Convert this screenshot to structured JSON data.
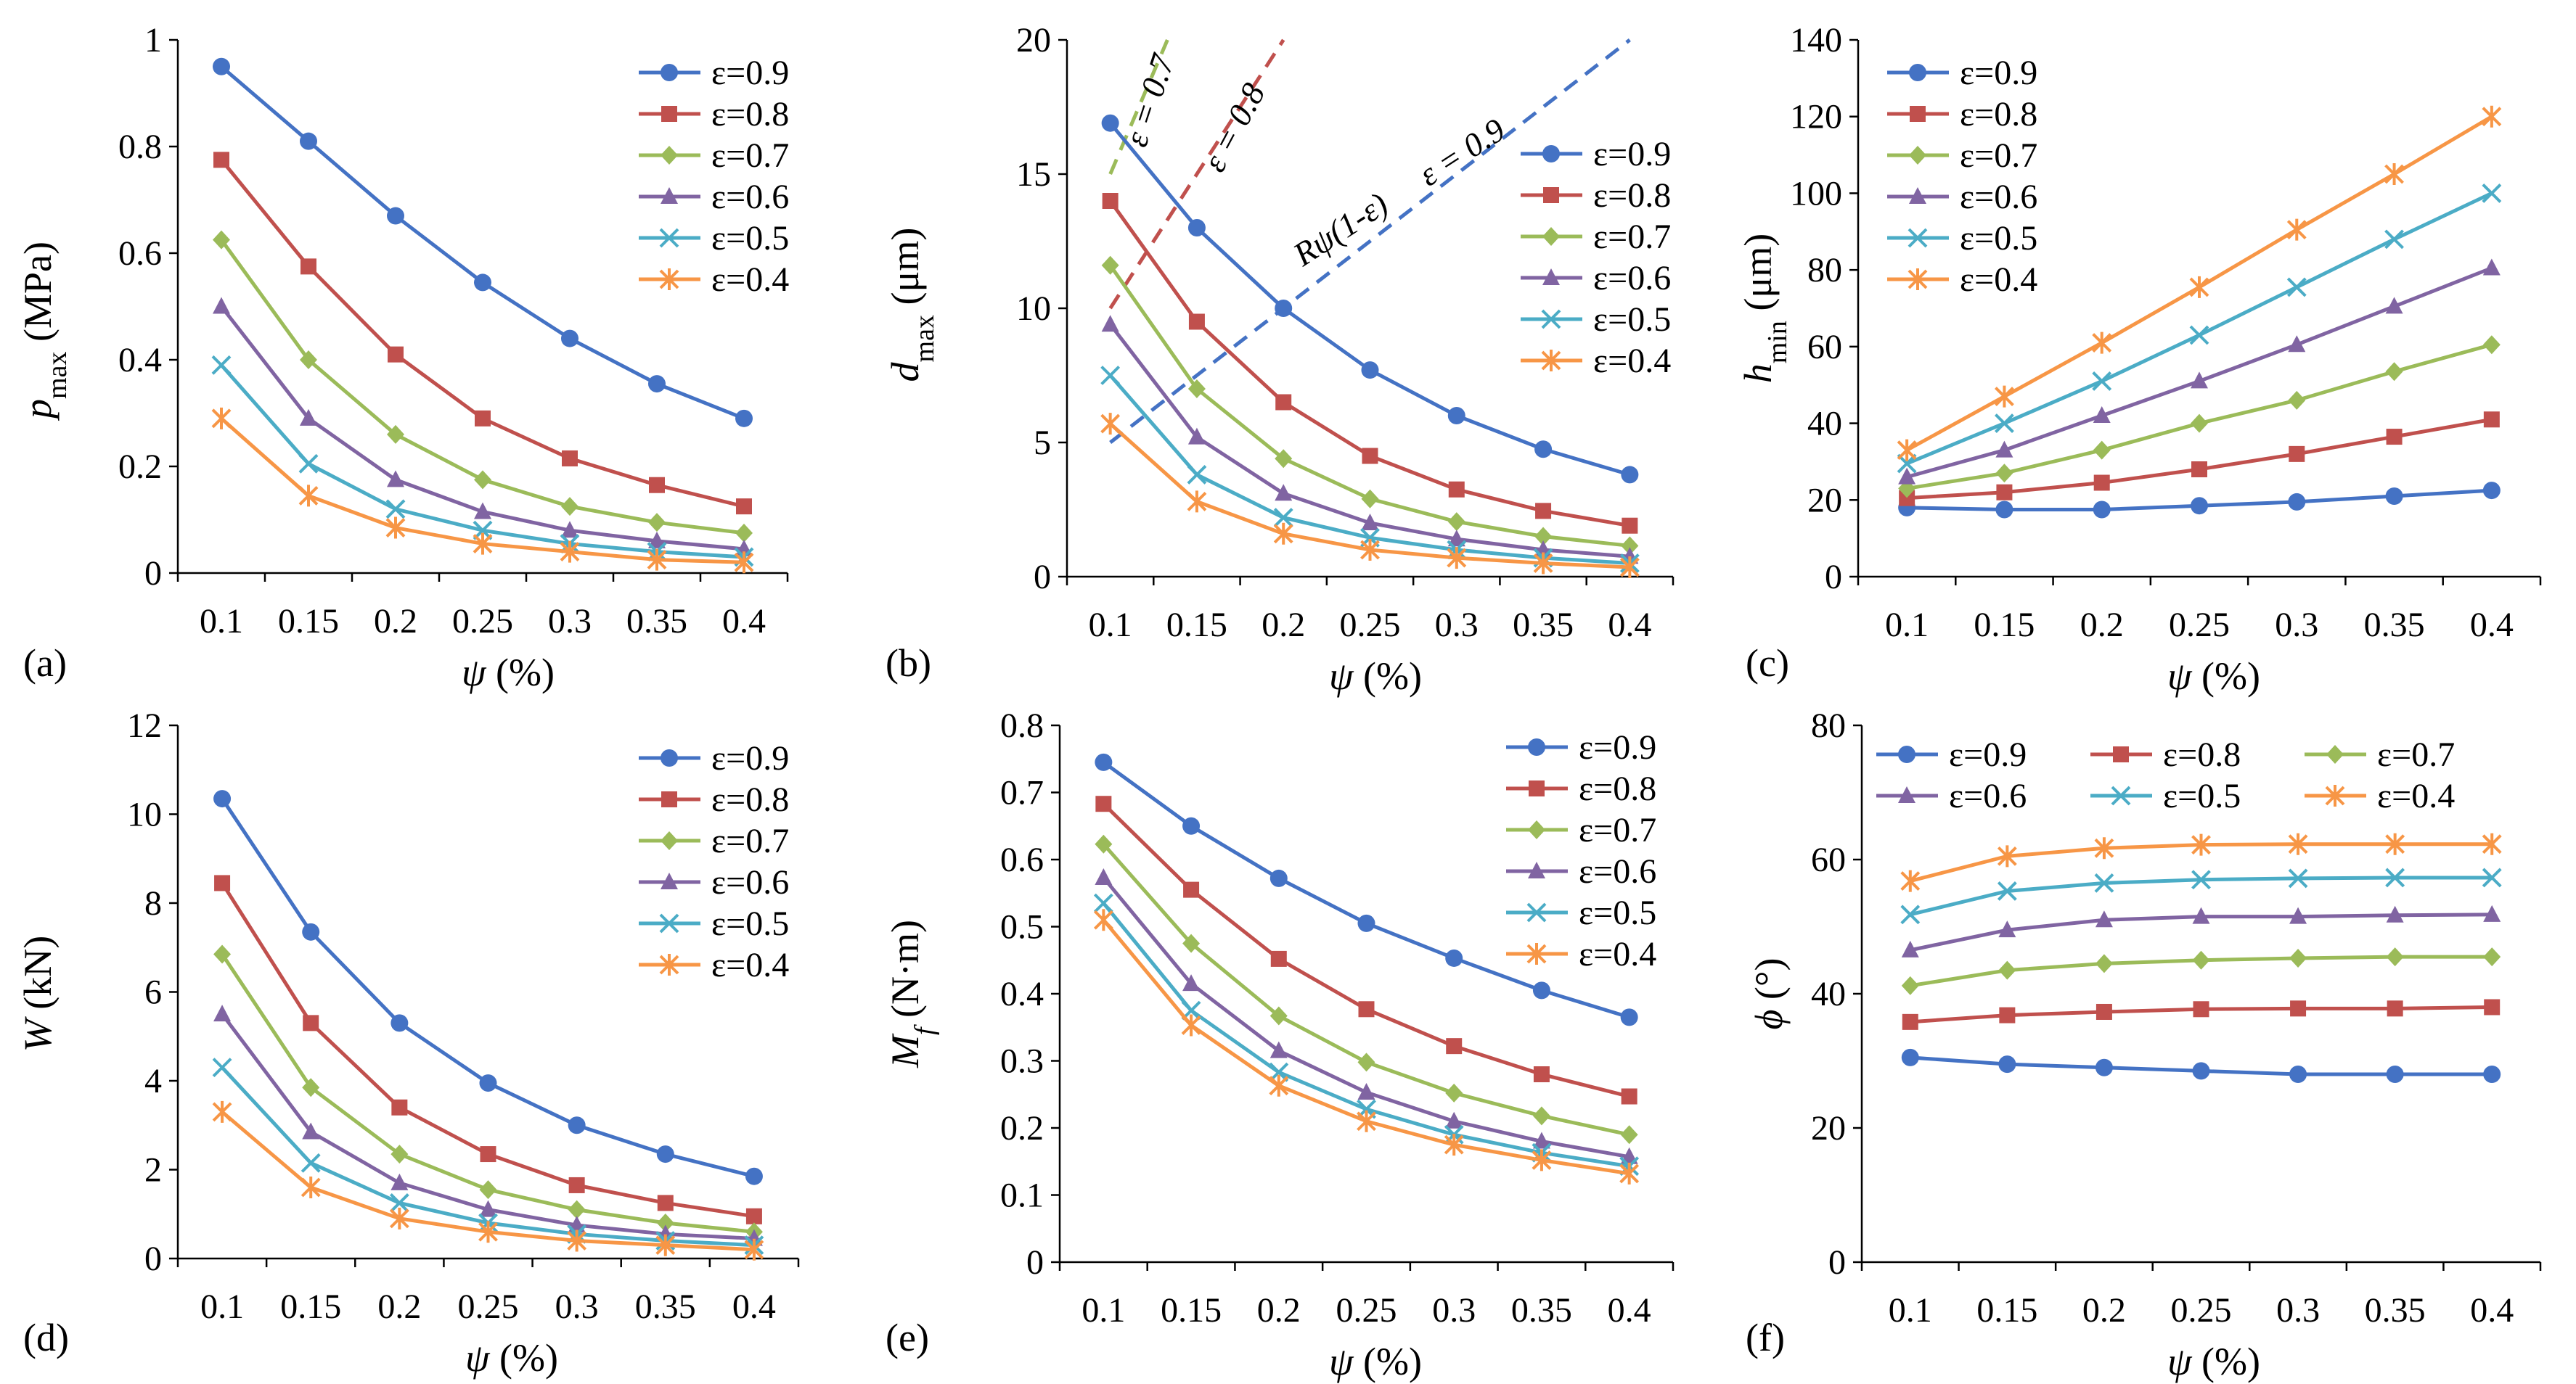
{
  "figure": {
    "series_names": [
      "ε=0.9",
      "ε=0.8",
      "ε=0.7",
      "ε=0.6",
      "ε=0.5",
      "ε=0.4"
    ],
    "colors": [
      "#4472C4",
      "#C0504D",
      "#9BBB59",
      "#8064A2",
      "#4BACC6",
      "#F79646"
    ],
    "markers": [
      "circle",
      "square",
      "diamond",
      "triangle",
      "x",
      "star"
    ]
  },
  "chart_data": [
    {
      "id": "a",
      "type": "line",
      "panel_label": "(a)",
      "x": [
        0.1,
        0.15,
        0.2,
        0.25,
        0.3,
        0.35,
        0.4
      ],
      "x_tick_labels": [
        "0.1",
        "0.15",
        "0.2",
        "0.25",
        "0.3",
        "0.35",
        "0.4"
      ],
      "xlabel_sym": "ψ",
      "xlabel_sub": "",
      "xlabel_unit": " (%)",
      "ylabel_sym": "p",
      "ylabel_sub": "max",
      "ylabel_unit": " (MPa)",
      "ylim": [
        0,
        1
      ],
      "y_ticks": [
        0,
        0.2,
        0.4,
        0.6,
        0.8,
        1
      ],
      "y_tick_labels": [
        "0",
        "0.2",
        "0.4",
        "0.6",
        "0.8",
        "1"
      ],
      "legend_position": "top-right",
      "legend_layout": "column",
      "series": [
        {
          "name": "ε=0.9",
          "values": [
            0.95,
            0.81,
            0.67,
            0.545,
            0.44,
            0.355,
            0.29
          ]
        },
        {
          "name": "ε=0.8",
          "values": [
            0.775,
            0.575,
            0.41,
            0.29,
            0.215,
            0.165,
            0.125
          ]
        },
        {
          "name": "ε=0.7",
          "values": [
            0.625,
            0.4,
            0.26,
            0.175,
            0.125,
            0.095,
            0.075
          ]
        },
        {
          "name": "ε=0.6",
          "values": [
            0.5,
            0.29,
            0.175,
            0.115,
            0.08,
            0.06,
            0.045
          ]
        },
        {
          "name": "ε=0.5",
          "values": [
            0.39,
            0.205,
            0.12,
            0.08,
            0.055,
            0.04,
            0.03
          ]
        },
        {
          "name": "ε=0.4",
          "values": [
            0.29,
            0.145,
            0.085,
            0.055,
            0.04,
            0.025,
            0.02
          ]
        }
      ]
    },
    {
      "id": "b",
      "type": "line",
      "panel_label": "(b)",
      "x": [
        0.1,
        0.15,
        0.2,
        0.25,
        0.3,
        0.35,
        0.4
      ],
      "x_tick_labels": [
        "0.1",
        "0.15",
        "0.2",
        "0.25",
        "0.3",
        "0.35",
        "0.4"
      ],
      "xlabel_sym": "ψ",
      "xlabel_sub": "",
      "xlabel_unit": " (%)",
      "ylabel_sym": "d",
      "ylabel_sub": "max",
      "ylabel_unit": " (μm)",
      "ylim": [
        0,
        20
      ],
      "y_ticks": [
        0,
        5,
        10,
        15,
        20
      ],
      "y_tick_labels": [
        "0",
        "5",
        "10",
        "15",
        "20"
      ],
      "legend_position": "right",
      "legend_layout": "column",
      "series": [
        {
          "name": "ε=0.9",
          "values": [
            16.9,
            13.0,
            10.0,
            7.7,
            6.0,
            4.75,
            3.8
          ]
        },
        {
          "name": "ε=0.8",
          "values": [
            14.0,
            9.5,
            6.5,
            4.5,
            3.25,
            2.45,
            1.9
          ]
        },
        {
          "name": "ε=0.7",
          "values": [
            11.6,
            7.0,
            4.4,
            2.9,
            2.05,
            1.5,
            1.15
          ]
        },
        {
          "name": "ε=0.6",
          "values": [
            9.4,
            5.2,
            3.1,
            2.0,
            1.4,
            1.0,
            0.75
          ]
        },
        {
          "name": "ε=0.5",
          "values": [
            7.5,
            3.8,
            2.2,
            1.45,
            1.0,
            0.7,
            0.5
          ]
        },
        {
          "name": "ε=0.4",
          "values": [
            5.7,
            2.8,
            1.6,
            1.0,
            0.7,
            0.5,
            0.35
          ]
        }
      ],
      "reference_lines": [
        {
          "label": "ε = 0.7",
          "color": "#9BBB59",
          "x": [
            0.1,
            0.133
          ],
          "y": [
            15.0,
            20.0
          ]
        },
        {
          "label": "ε = 0.8",
          "color": "#C0504D",
          "x": [
            0.1,
            0.2
          ],
          "y": [
            10.0,
            20.0
          ]
        },
        {
          "label": "ε = 0.9",
          "color": "#4472C4",
          "x": [
            0.1,
            0.4
          ],
          "y": [
            5.0,
            20.0
          ]
        }
      ],
      "annotations": {
        "rpsi": "Rψ(1-ε)",
        "e07": "ε = 0.7",
        "e08": "ε = 0.8",
        "e09": "ε = 0.9"
      }
    },
    {
      "id": "c",
      "type": "line",
      "panel_label": "(c)",
      "x": [
        0.1,
        0.15,
        0.2,
        0.25,
        0.3,
        0.35,
        0.4
      ],
      "x_tick_labels": [
        "0.1",
        "0.15",
        "0.2",
        "0.25",
        "0.3",
        "0.35",
        "0.4"
      ],
      "xlabel_sym": "ψ",
      "xlabel_sub": "",
      "xlabel_unit": " (%)",
      "ylabel_sym": "h",
      "ylabel_sub": "min",
      "ylabel_unit": " (μm)",
      "ylim": [
        0,
        140
      ],
      "y_ticks": [
        0,
        20,
        40,
        60,
        80,
        100,
        120,
        140
      ],
      "y_tick_labels": [
        "0",
        "20",
        "40",
        "60",
        "80",
        "100",
        "120",
        "140"
      ],
      "legend_position": "top-left",
      "legend_layout": "column",
      "series": [
        {
          "name": "ε=0.9",
          "values": [
            18,
            17.5,
            17.5,
            18.5,
            19.5,
            21,
            22.5
          ]
        },
        {
          "name": "ε=0.8",
          "values": [
            20.5,
            22,
            24.5,
            28,
            32,
            36.5,
            41
          ]
        },
        {
          "name": "ε=0.7",
          "values": [
            23,
            27,
            33,
            40,
            46,
            53.5,
            60.5
          ]
        },
        {
          "name": "ε=0.6",
          "values": [
            26,
            33,
            42,
            51,
            60.5,
            70.5,
            80.5
          ]
        },
        {
          "name": "ε=0.5",
          "values": [
            29.5,
            40,
            51,
            63,
            75.5,
            88,
            100
          ]
        },
        {
          "name": "ε=0.4",
          "values": [
            33,
            47,
            61,
            75.5,
            90.5,
            105,
            120
          ]
        }
      ]
    },
    {
      "id": "d",
      "type": "line",
      "panel_label": "(d)",
      "x": [
        0.1,
        0.15,
        0.2,
        0.25,
        0.3,
        0.35,
        0.4
      ],
      "x_tick_labels": [
        "0.1",
        "0.15",
        "0.2",
        "0.25",
        "0.3",
        "0.35",
        "0.4"
      ],
      "xlabel_sym": "ψ",
      "xlabel_sub": "",
      "xlabel_unit": " (%)",
      "ylabel_sym": "W",
      "ylabel_sub": "",
      "ylabel_unit": " (kN)",
      "ylim": [
        0,
        12
      ],
      "y_ticks": [
        0,
        2,
        4,
        6,
        8,
        10,
        12
      ],
      "y_tick_labels": [
        "0",
        "2",
        "4",
        "6",
        "8",
        "10",
        "12"
      ],
      "legend_position": "top-right",
      "legend_layout": "column",
      "series": [
        {
          "name": "ε=0.9",
          "values": [
            10.35,
            7.35,
            5.3,
            3.95,
            3.0,
            2.35,
            1.85
          ]
        },
        {
          "name": "ε=0.8",
          "values": [
            8.45,
            5.3,
            3.4,
            2.35,
            1.65,
            1.25,
            0.95
          ]
        },
        {
          "name": "ε=0.7",
          "values": [
            6.85,
            3.85,
            2.35,
            1.55,
            1.1,
            0.8,
            0.6
          ]
        },
        {
          "name": "ε=0.6",
          "values": [
            5.5,
            2.85,
            1.7,
            1.1,
            0.75,
            0.55,
            0.45
          ]
        },
        {
          "name": "ε=0.5",
          "values": [
            4.3,
            2.15,
            1.25,
            0.8,
            0.55,
            0.4,
            0.3
          ]
        },
        {
          "name": "ε=0.4",
          "values": [
            3.3,
            1.6,
            0.9,
            0.6,
            0.4,
            0.3,
            0.2
          ]
        }
      ]
    },
    {
      "id": "e",
      "type": "line",
      "panel_label": "(e)",
      "x": [
        0.1,
        0.15,
        0.2,
        0.25,
        0.3,
        0.35,
        0.4
      ],
      "x_tick_labels": [
        "0.1",
        "0.15",
        "0.2",
        "0.25",
        "0.3",
        "0.35",
        "0.4"
      ],
      "xlabel_sym": "ψ",
      "xlabel_sub": "",
      "xlabel_unit": " (%)",
      "ylabel_sym": "M",
      "ylabel_sub": "f",
      "ylabel_unit": " (N·m)",
      "ylim": [
        0,
        0.8
      ],
      "y_ticks": [
        0,
        0.1,
        0.2,
        0.3,
        0.4,
        0.5,
        0.6,
        0.7,
        0.8
      ],
      "y_tick_labels": [
        "0",
        "0.1",
        "0.2",
        "0.3",
        "0.4",
        "0.5",
        "0.6",
        "0.7",
        "0.8"
      ],
      "legend_position": "top-right",
      "legend_layout": "column",
      "series": [
        {
          "name": "ε=0.9",
          "values": [
            0.745,
            0.65,
            0.572,
            0.505,
            0.453,
            0.405,
            0.365
          ]
        },
        {
          "name": "ε=0.8",
          "values": [
            0.683,
            0.555,
            0.452,
            0.377,
            0.322,
            0.28,
            0.247
          ]
        },
        {
          "name": "ε=0.7",
          "values": [
            0.623,
            0.475,
            0.367,
            0.298,
            0.252,
            0.218,
            0.19
          ]
        },
        {
          "name": "ε=0.6",
          "values": [
            0.573,
            0.415,
            0.315,
            0.253,
            0.21,
            0.18,
            0.157
          ]
        },
        {
          "name": "ε=0.5",
          "values": [
            0.535,
            0.375,
            0.283,
            0.228,
            0.19,
            0.163,
            0.143
          ]
        },
        {
          "name": "ε=0.4",
          "values": [
            0.51,
            0.353,
            0.263,
            0.21,
            0.175,
            0.152,
            0.132
          ]
        }
      ]
    },
    {
      "id": "f",
      "type": "line",
      "panel_label": "(f)",
      "x": [
        0.1,
        0.15,
        0.2,
        0.25,
        0.3,
        0.35,
        0.4
      ],
      "x_tick_labels": [
        "0.1",
        "0.15",
        "0.2",
        "0.25",
        "0.3",
        "0.35",
        "0.4"
      ],
      "xlabel_sym": "ψ",
      "xlabel_sub": "",
      "xlabel_unit": " (%)",
      "ylabel_sym": "ϕ",
      "ylabel_sub": "",
      "ylabel_unit": " (°)",
      "ylim": [
        0,
        80
      ],
      "y_ticks": [
        0,
        20,
        40,
        60,
        80
      ],
      "y_tick_labels": [
        "0",
        "20",
        "40",
        "60",
        "80"
      ],
      "legend_position": "top",
      "legend_layout": "grid-3-columns",
      "series": [
        {
          "name": "ε=0.9",
          "values": [
            30.5,
            29.5,
            29.0,
            28.5,
            28.0,
            28.0,
            28.0
          ]
        },
        {
          "name": "ε=0.8",
          "values": [
            35.8,
            36.8,
            37.3,
            37.7,
            37.8,
            37.8,
            38.0
          ]
        },
        {
          "name": "ε=0.7",
          "values": [
            41.2,
            43.5,
            44.5,
            45.0,
            45.3,
            45.5,
            45.5
          ]
        },
        {
          "name": "ε=0.6",
          "values": [
            46.5,
            49.5,
            51.0,
            51.5,
            51.5,
            51.7,
            51.8
          ]
        },
        {
          "name": "ε=0.5",
          "values": [
            51.8,
            55.3,
            56.5,
            57.0,
            57.2,
            57.3,
            57.3
          ]
        },
        {
          "name": "ε=0.4",
          "values": [
            56.8,
            60.5,
            61.7,
            62.2,
            62.3,
            62.3,
            62.3
          ]
        }
      ]
    }
  ]
}
